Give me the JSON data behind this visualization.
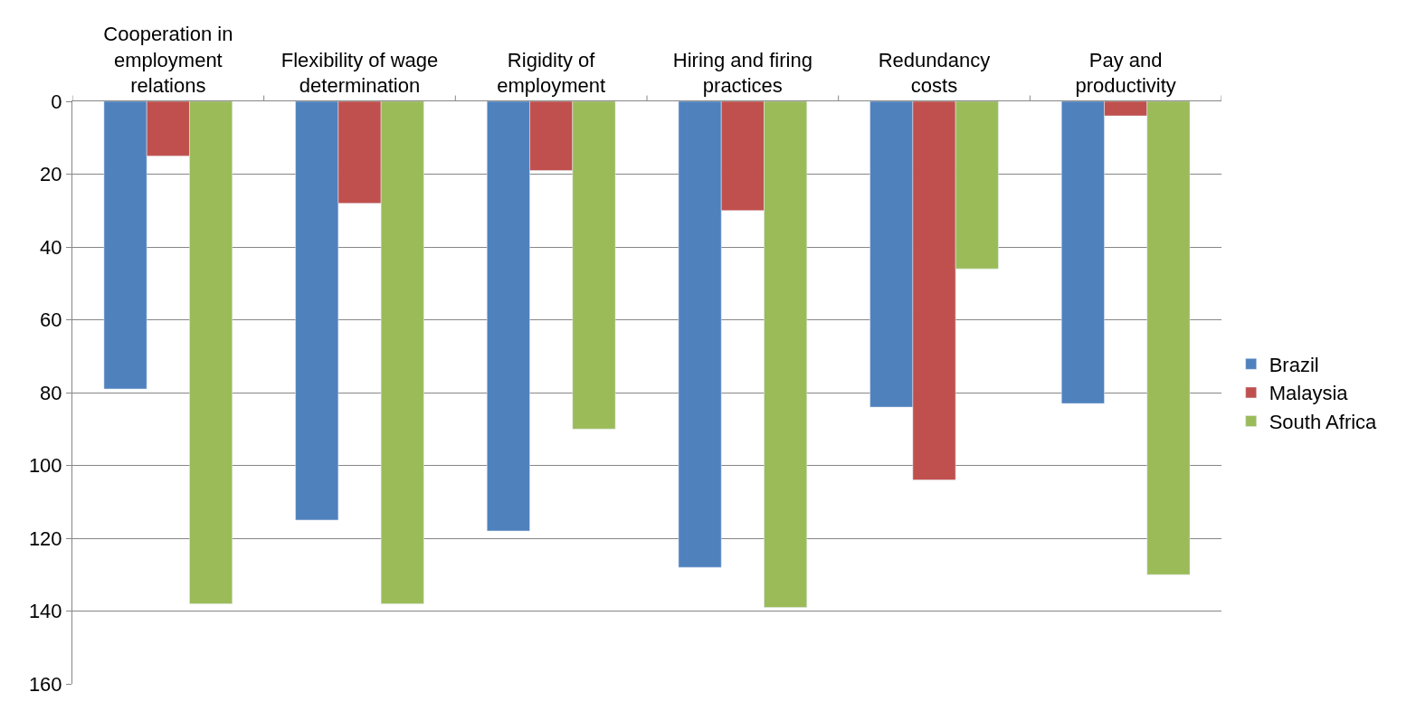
{
  "chart_data": {
    "type": "bar",
    "categories": [
      "Cooperation in\nemployment\nrelations",
      "Flexibility of wage\ndetermination",
      "Rigidity of\nemployment",
      "Hiring and firing\npractices",
      "Redundancy\ncosts",
      "Pay and\nproductivity"
    ],
    "series": [
      {
        "name": "Brazil",
        "color": "#4f81bd",
        "values": [
          79,
          115,
          118,
          128,
          84,
          83
        ]
      },
      {
        "name": "Malaysia",
        "color": "#c0504d",
        "values": [
          15,
          28,
          19,
          30,
          104,
          4
        ]
      },
      {
        "name": "South Africa",
        "color": "#9bbb59",
        "values": [
          138,
          138,
          90,
          139,
          46,
          130
        ]
      }
    ],
    "ylim": [
      160,
      0
    ],
    "yticks": [
      0,
      20,
      40,
      60,
      80,
      100,
      120,
      140,
      160
    ],
    "grid": "y",
    "legend": "right"
  }
}
